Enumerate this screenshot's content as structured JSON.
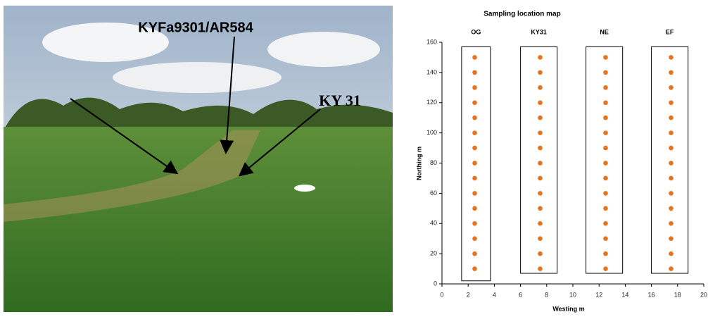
{
  "photo": {
    "labels": [
      "KYFa9301/AR584",
      "KY 31"
    ]
  },
  "chart_data": {
    "type": "scatter",
    "title": "Sampling location map",
    "x_label": "Westing m",
    "y_label": "Northing m",
    "color": "#e8731e",
    "xlim": [
      0,
      20
    ],
    "ylim": [
      0,
      160
    ],
    "xticks": [
      0,
      2,
      4,
      6,
      8,
      10,
      12,
      14,
      16,
      18,
      20
    ],
    "yticks": [
      0,
      20,
      40,
      60,
      80,
      100,
      120,
      140,
      160
    ],
    "plots": [
      {
        "name": "OG",
        "x": [
          1.5,
          3.7
        ],
        "y": [
          2,
          157
        ]
      },
      {
        "name": "KY31",
        "x": [
          6,
          8.8
        ],
        "y": [
          7,
          157
        ]
      },
      {
        "name": "NE",
        "x": [
          11,
          13.8
        ],
        "y": [
          7,
          157
        ]
      },
      {
        "name": "EF",
        "x": [
          16,
          18.8
        ],
        "y": [
          7,
          157
        ]
      }
    ],
    "series": [
      {
        "x": [
          2.5,
          2.5,
          2.5,
          2.5,
          2.5,
          2.5,
          2.5,
          2.5,
          2.5,
          2.5,
          2.5,
          2.5,
          2.5,
          2.5,
          2.5
        ],
        "values": [
          10,
          20,
          30,
          40,
          50,
          60,
          70,
          80,
          90,
          100,
          110,
          120,
          130,
          140,
          150
        ]
      },
      {
        "x": [
          7.5,
          7.5,
          7.5,
          7.5,
          7.5,
          7.5,
          7.5,
          7.5,
          7.5,
          7.5,
          7.5,
          7.5,
          7.5,
          7.5,
          7.5
        ],
        "values": [
          10,
          20,
          30,
          40,
          50,
          60,
          70,
          80,
          90,
          100,
          110,
          120,
          130,
          140,
          150
        ]
      },
      {
        "x": [
          12.5,
          12.5,
          12.5,
          12.5,
          12.5,
          12.5,
          12.5,
          12.5,
          12.5,
          12.5,
          12.5,
          12.5,
          12.5,
          12.5,
          12.5
        ],
        "values": [
          10,
          20,
          30,
          40,
          50,
          60,
          70,
          80,
          90,
          100,
          110,
          120,
          130,
          140,
          150
        ]
      },
      {
        "x": [
          17.5,
          17.5,
          17.5,
          17.5,
          17.5,
          17.5,
          17.5,
          17.5,
          17.5,
          17.5,
          17.5,
          17.5,
          17.5,
          17.5,
          17.5
        ],
        "values": [
          10,
          20,
          30,
          40,
          50,
          60,
          70,
          80,
          90,
          100,
          110,
          120,
          130,
          140,
          150
        ]
      }
    ]
  }
}
